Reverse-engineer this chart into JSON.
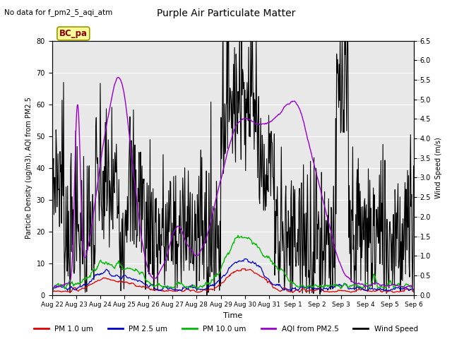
{
  "title": "Purple Air Particulate Matter",
  "subtitle": "No data for f_pm2_5_aqi_atm",
  "station_label": "BC_pa",
  "xlabel": "Time",
  "ylabel_left": "Particle Density (ug/m3), AQI from PM2.5",
  "ylabel_right": "Wind Speed (m/s)",
  "ylim_left": [
    0,
    80
  ],
  "ylim_right": [
    0,
    6.5
  ],
  "yticks_left": [
    0,
    10,
    20,
    30,
    40,
    50,
    60,
    70,
    80
  ],
  "yticks_right": [
    0.0,
    0.5,
    1.0,
    1.5,
    2.0,
    2.5,
    3.0,
    3.5,
    4.0,
    4.5,
    5.0,
    5.5,
    6.0,
    6.5
  ],
  "xtick_labels": [
    "Aug 22",
    "Aug 23",
    "Aug 24",
    "Aug 25",
    "Aug 26",
    "Aug 27",
    "Aug 28",
    "Aug 29",
    "Aug 30",
    "Aug 31",
    "Sep 1",
    "Sep 2",
    "Sep 3",
    "Sep 4",
    "Sep 5",
    "Sep 6"
  ],
  "colors": {
    "pm1": "#dd0000",
    "pm25": "#0000cc",
    "pm10": "#00bb00",
    "aqi": "#9900cc",
    "wind": "#000000"
  },
  "legend_labels": [
    "PM 1.0 um",
    "PM 2.5 um",
    "PM 10.0 um",
    "AQI from PM2.5",
    "Wind Speed"
  ],
  "bg_color": "#e8e8e8",
  "fig_bg": "#ffffff",
  "n_points": 720
}
